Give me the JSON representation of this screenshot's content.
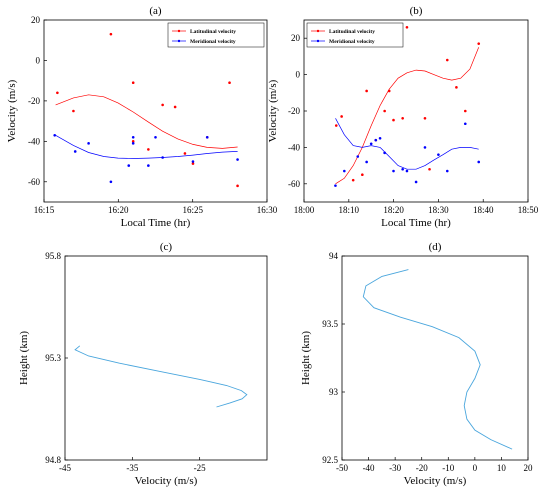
{
  "chart_data": [
    {
      "panel": "(a)",
      "type": "scatter",
      "title": "(a)",
      "xlabel": "Local Time (hr)",
      "ylabel": "Velocity (m/s)",
      "xlim": [
        16.25,
        16.5
      ],
      "ylim": [
        -70,
        20
      ],
      "xticks": [
        16.25,
        16.3333,
        16.4167,
        16.5
      ],
      "xtick_labels": [
        "16:15",
        "16:20",
        "16:25",
        "16:30"
      ],
      "yticks": [
        -60,
        -40,
        -20,
        0,
        20
      ],
      "ytick_labels": [
        "-60",
        "-40",
        "-20",
        "0",
        "20"
      ],
      "legend_position": "top-right",
      "series": [
        {
          "name": "Latitudinal velocity",
          "color": "#ff0000",
          "points": [
            [
              16.265,
              -16
            ],
            [
              16.283,
              -25
            ],
            [
              16.325,
              13
            ],
            [
              16.35,
              -11
            ],
            [
              16.35,
              -40
            ],
            [
              16.367,
              -44
            ],
            [
              16.383,
              -22
            ],
            [
              16.397,
              -23
            ],
            [
              16.408,
              -46
            ],
            [
              16.417,
              -51
            ],
            [
              16.433,
              -38
            ],
            [
              16.458,
              -11
            ],
            [
              16.467,
              -62
            ]
          ],
          "fit": [
            [
              16.263,
              -22
            ],
            [
              16.283,
              -18.5
            ],
            [
              16.3,
              -17
            ],
            [
              16.317,
              -18
            ],
            [
              16.333,
              -21
            ],
            [
              16.35,
              -25.5
            ],
            [
              16.367,
              -30.5
            ],
            [
              16.383,
              -35
            ],
            [
              16.4,
              -38.8
            ],
            [
              16.417,
              -41.5
            ],
            [
              16.433,
              -43
            ],
            [
              16.45,
              -43.5
            ],
            [
              16.467,
              -42.8
            ]
          ]
        },
        {
          "name": "Meridional velocity",
          "color": "#0000ff",
          "points": [
            [
              16.262,
              -37
            ],
            [
              16.285,
              -45
            ],
            [
              16.3,
              -41
            ],
            [
              16.325,
              -60
            ],
            [
              16.345,
              -52
            ],
            [
              16.35,
              -38
            ],
            [
              16.35,
              -41
            ],
            [
              16.367,
              -52
            ],
            [
              16.375,
              -38
            ],
            [
              16.383,
              -48
            ],
            [
              16.417,
              -50
            ],
            [
              16.433,
              -38
            ],
            [
              16.467,
              -49
            ]
          ],
          "fit": [
            [
              16.263,
              -37
            ],
            [
              16.283,
              -42
            ],
            [
              16.3,
              -45.5
            ],
            [
              16.317,
              -47.5
            ],
            [
              16.333,
              -48.3
            ],
            [
              16.35,
              -48.5
            ],
            [
              16.367,
              -48.3
            ],
            [
              16.383,
              -48
            ],
            [
              16.4,
              -47.5
            ],
            [
              16.417,
              -46.8
            ],
            [
              16.433,
              -46
            ],
            [
              16.45,
              -45.3
            ],
            [
              16.467,
              -45
            ]
          ]
        }
      ]
    },
    {
      "panel": "(b)",
      "type": "scatter",
      "title": "(b)",
      "xlabel": "Local Time (hr)",
      "ylabel": "Velocity (m/s)",
      "xlim": [
        18.0,
        18.8333
      ],
      "ylim": [
        -70,
        30
      ],
      "xticks": [
        18.0,
        18.1667,
        18.3333,
        18.5,
        18.6667,
        18.8333
      ],
      "xtick_labels": [
        "18:00",
        "18:10",
        "18:20",
        "18:30",
        "18:40",
        "18:50"
      ],
      "yticks": [
        -60,
        -40,
        -20,
        0,
        20
      ],
      "ytick_labels": [
        "-60",
        "-40",
        "-20",
        "0",
        "20"
      ],
      "legend_position": "top-left",
      "series": [
        {
          "name": "Latitudinal velocity",
          "color": "#ff0000",
          "points": [
            [
              18.12,
              -28
            ],
            [
              18.14,
              -23
            ],
            [
              18.183,
              -58
            ],
            [
              18.217,
              -55
            ],
            [
              18.233,
              -9
            ],
            [
              18.25,
              18
            ],
            [
              18.267,
              -36
            ],
            [
              18.3,
              -20
            ],
            [
              18.317,
              -9
            ],
            [
              18.333,
              -25
            ],
            [
              18.367,
              -24
            ],
            [
              18.383,
              26
            ],
            [
              18.45,
              -24
            ],
            [
              18.467,
              -52
            ],
            [
              18.533,
              8
            ],
            [
              18.567,
              -7
            ],
            [
              18.65,
              17
            ],
            [
              18.6,
              -20
            ]
          ],
          "fit": [
            [
              18.117,
              -60
            ],
            [
              18.15,
              -57
            ],
            [
              18.183,
              -50
            ],
            [
              18.217,
              -40
            ],
            [
              18.25,
              -28
            ],
            [
              18.283,
              -17
            ],
            [
              18.317,
              -8
            ],
            [
              18.35,
              -2
            ],
            [
              18.383,
              1
            ],
            [
              18.417,
              2.5
            ],
            [
              18.45,
              2
            ],
            [
              18.483,
              0
            ],
            [
              18.517,
              -2
            ],
            [
              18.55,
              -3
            ],
            [
              18.583,
              -2
            ],
            [
              18.617,
              3
            ],
            [
              18.65,
              15
            ]
          ]
        },
        {
          "name": "Meridional velocity",
          "color": "#0000ff",
          "points": [
            [
              18.117,
              -61
            ],
            [
              18.15,
              -53
            ],
            [
              18.2,
              -45
            ],
            [
              18.233,
              -48
            ],
            [
              18.25,
              -38
            ],
            [
              18.267,
              -36
            ],
            [
              18.283,
              -35
            ],
            [
              18.3,
              -43
            ],
            [
              18.333,
              -53
            ],
            [
              18.367,
              -52
            ],
            [
              18.383,
              -53
            ],
            [
              18.417,
              -59
            ],
            [
              18.45,
              -40
            ],
            [
              18.5,
              -44
            ],
            [
              18.533,
              -53
            ],
            [
              18.6,
              -27
            ],
            [
              18.65,
              -48
            ]
          ],
          "fit": [
            [
              18.117,
              -24
            ],
            [
              18.15,
              -33
            ],
            [
              18.183,
              -39
            ],
            [
              18.217,
              -40
            ],
            [
              18.25,
              -39
            ],
            [
              18.283,
              -40
            ],
            [
              18.317,
              -45
            ],
            [
              18.35,
              -50
            ],
            [
              18.383,
              -52
            ],
            [
              18.417,
              -52
            ],
            [
              18.45,
              -50
            ],
            [
              18.483,
              -47
            ],
            [
              18.517,
              -44
            ],
            [
              18.55,
              -41
            ],
            [
              18.583,
              -40
            ],
            [
              18.617,
              -40
            ],
            [
              18.65,
              -41
            ]
          ]
        }
      ]
    },
    {
      "panel": "(c)",
      "type": "line",
      "title": "(c)",
      "xlabel": "Velocity (m/s)",
      "ylabel": "Height (km)",
      "xlim": [
        -45,
        -15
      ],
      "ylim": [
        94.8,
        95.8
      ],
      "xticks": [
        -45,
        -35,
        -25
      ],
      "xtick_labels": [
        "-45",
        "-35",
        "-25"
      ],
      "yticks": [
        94.8,
        95.3,
        95.8
      ],
      "ytick_labels": [
        "94.8",
        "95.3",
        "95.8"
      ],
      "series": [
        {
          "color": "#4aa6dd",
          "points": [
            [
              -22.5,
              95.06
            ],
            [
              -20.5,
              95.08
            ],
            [
              -18.7,
              95.1
            ],
            [
              -18,
              95.12
            ],
            [
              -18.8,
              95.14
            ],
            [
              -21,
              95.165
            ],
            [
              -25,
              95.195
            ],
            [
              -31,
              95.235
            ],
            [
              -37,
              95.275
            ],
            [
              -41.5,
              95.31
            ],
            [
              -43.5,
              95.34
            ],
            [
              -42.8,
              95.36
            ]
          ]
        }
      ]
    },
    {
      "panel": "(d)",
      "type": "line",
      "title": "(d)",
      "xlabel": "Velocity (m/s)",
      "ylabel": "Height (km)",
      "xlim": [
        -50,
        20
      ],
      "ylim": [
        92.5,
        94
      ],
      "xticks": [
        -50,
        -40,
        -30,
        -20,
        -10,
        0,
        10,
        20
      ],
      "xtick_labels": [
        "-50",
        "-40",
        "-30",
        "-20",
        "-10",
        "0",
        "10",
        "20"
      ],
      "yticks": [
        92.5,
        93,
        93.5,
        94
      ],
      "ytick_labels": [
        "92.5",
        "93",
        "93.5",
        "94"
      ],
      "series": [
        {
          "color": "#4aa6dd",
          "points": [
            [
              -25,
              93.9
            ],
            [
              -35,
              93.85
            ],
            [
              -41,
              93.78
            ],
            [
              -42,
              93.7
            ],
            [
              -38,
              93.62
            ],
            [
              -28,
              93.55
            ],
            [
              -16,
              93.48
            ],
            [
              -6,
              93.4
            ],
            [
              0,
              93.3
            ],
            [
              2,
              93.2
            ],
            [
              0,
              93.1
            ],
            [
              -3,
              93
            ],
            [
              -4,
              92.9
            ],
            [
              -3,
              92.8
            ],
            [
              0,
              92.72
            ],
            [
              6,
              92.65
            ],
            [
              14,
              92.58
            ]
          ]
        }
      ]
    }
  ]
}
